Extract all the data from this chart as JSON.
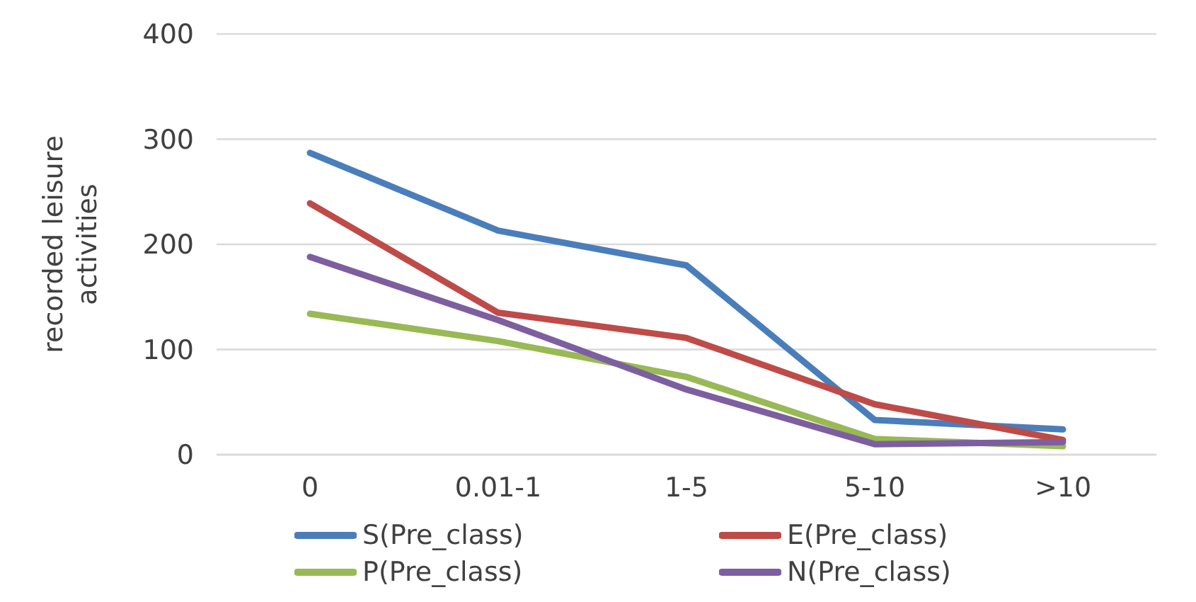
{
  "chart_data": {
    "type": "line",
    "ylabel": "recorded leisure activities",
    "categories": [
      "0",
      "0.01-1",
      "1-5",
      "5-10",
      ">10"
    ],
    "series": [
      {
        "name": "S(Pre_class)",
        "color": "#4a7ebb",
        "values": [
          287,
          213,
          180,
          33,
          24
        ]
      },
      {
        "name": "E(Pre_class)",
        "color": "#be4b48",
        "values": [
          239,
          135,
          111,
          48,
          14
        ]
      },
      {
        "name": "P(Pre_class)",
        "color": "#98b954",
        "values": [
          134,
          108,
          74,
          15,
          8
        ]
      },
      {
        "name": "N(Pre_class)",
        "color": "#7d5fa0",
        "values": [
          188,
          128,
          62,
          10,
          12
        ]
      }
    ],
    "ylim": [
      0,
      400
    ],
    "yticks": [
      0,
      100,
      200,
      300,
      400
    ],
    "grid": "y",
    "legend": "bottom",
    "marker": "none",
    "line_style": "solid"
  }
}
